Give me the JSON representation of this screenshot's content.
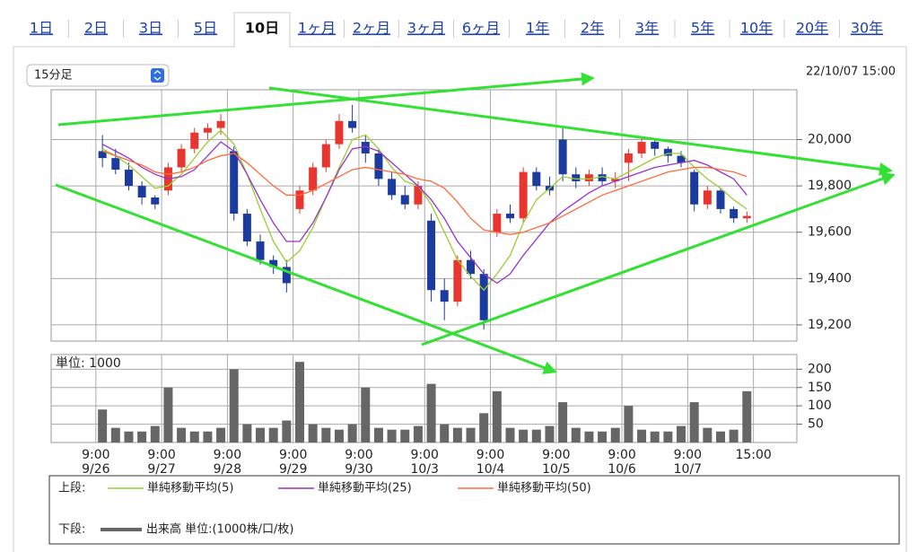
{
  "tabs": [
    "1日",
    "2日",
    "3日",
    "5日",
    "10日",
    "1ヶ月",
    "2ヶ月",
    "3ヶ月",
    "6ヶ月",
    "1年",
    "2年",
    "3年",
    "5年",
    "10年",
    "20年",
    "30年"
  ],
  "selected": 4,
  "interval_select": "15分足",
  "timestamp": "22/10/07 15:00",
  "chart_data": [
    {
      "type": "candlestick",
      "legend_label": "上段:",
      "ylim": [
        19130,
        20215
      ],
      "yticks": [
        {
          "value": 19200,
          "label": "19,200"
        },
        {
          "value": 19400,
          "label": "19,400"
        },
        {
          "value": 19600,
          "label": "19,600"
        },
        {
          "value": 19800,
          "label": "19,800"
        },
        {
          "value": 20000,
          "label": "20,000"
        }
      ],
      "xlim": [
        -3.4,
        53.3
      ],
      "xticks": [
        {
          "value": 0,
          "label": "9:00",
          "date": "9/26"
        },
        {
          "value": 5,
          "label": "9:00",
          "date": "9/27"
        },
        {
          "value": 10,
          "label": "9:00",
          "date": "9/28"
        },
        {
          "value": 15,
          "label": "9:00",
          "date": "9/29"
        },
        {
          "value": 20,
          "label": "9:00",
          "date": "9/30"
        },
        {
          "value": 25,
          "label": "9:00",
          "date": "10/3"
        },
        {
          "value": 30,
          "label": "9:00",
          "date": "10/4"
        },
        {
          "value": 35,
          "label": "9:00",
          "date": "10/5"
        },
        {
          "value": 40,
          "label": "9:00",
          "date": "10/6"
        },
        {
          "value": 45,
          "label": "9:00",
          "date": "10/7"
        },
        {
          "value": 50,
          "label": "15:00"
        }
      ],
      "up_color": "#e8352f",
      "down_color": "#1c3b9e",
      "open": [
        19950,
        19920,
        19870,
        19800,
        19750,
        19780,
        19880,
        19960,
        20030,
        20050,
        19950,
        19680,
        19560,
        19480,
        19450,
        19700,
        19780,
        19880,
        19980,
        20080,
        19990,
        19940,
        19830,
        19760,
        19720,
        19650,
        19350,
        19300,
        19480,
        19420,
        19600,
        19680,
        19660,
        19860,
        19800,
        20000,
        19850,
        19820,
        19850,
        19820,
        19900,
        19940,
        19990,
        19960,
        19930,
        19860,
        19720,
        19780,
        19700,
        19660
      ],
      "high": [
        20020,
        19960,
        19900,
        19820,
        19760,
        19900,
        19980,
        20050,
        20070,
        20110,
        19970,
        19700,
        19590,
        19500,
        19480,
        19800,
        19900,
        20000,
        20110,
        20150,
        20020,
        19960,
        19860,
        19800,
        19820,
        19680,
        19400,
        19500,
        19520,
        19440,
        19700,
        19720,
        19880,
        19880,
        19840,
        20050,
        19880,
        19870,
        19880,
        19860,
        19960,
        20010,
        20000,
        19970,
        19950,
        19870,
        19800,
        19790,
        19710,
        19690
      ],
      "low": [
        19880,
        19850,
        19780,
        19720,
        19700,
        19760,
        19860,
        19940,
        20000,
        20020,
        19650,
        19540,
        19460,
        19420,
        19340,
        19680,
        19760,
        19860,
        19960,
        20030,
        19900,
        19800,
        19740,
        19700,
        19700,
        19300,
        19220,
        19280,
        19400,
        19180,
        19580,
        19640,
        19640,
        19780,
        19760,
        19820,
        19790,
        19800,
        19800,
        19790,
        19820,
        19920,
        19930,
        19900,
        19880,
        19690,
        19700,
        19680,
        19640,
        19640
      ],
      "close": [
        19920,
        19870,
        19800,
        19750,
        19720,
        19880,
        19960,
        20030,
        20050,
        20080,
        19680,
        19560,
        19480,
        19450,
        19380,
        19780,
        19880,
        19980,
        20080,
        20050,
        19940,
        19830,
        19760,
        19720,
        19800,
        19350,
        19300,
        19480,
        19420,
        19220,
        19680,
        19660,
        19860,
        19800,
        19780,
        19850,
        19820,
        19850,
        19820,
        19830,
        19940,
        19990,
        19960,
        19930,
        19900,
        19720,
        19780,
        19700,
        19660,
        19670
      ],
      "series": [
        {
          "name": "単純移動平均(5)",
          "color": "#9acd32",
          "values": [
            19960,
            19930,
            19890,
            19840,
            19790,
            19800,
            19850,
            19920,
            19990,
            20040,
            19980,
            19850,
            19700,
            19560,
            19470,
            19520,
            19620,
            19750,
            19880,
            20000,
            20020,
            19960,
            19880,
            19820,
            19800,
            19720,
            19600,
            19480,
            19410,
            19350,
            19420,
            19500,
            19640,
            19740,
            19790,
            19840,
            19830,
            19830,
            19840,
            19830,
            19860,
            19890,
            19920,
            19940,
            19940,
            19880,
            19830,
            19790,
            19740,
            19700
          ]
        },
        {
          "name": "単純移動平均(25)",
          "color": "#9932cc",
          "values": [
            19980,
            19950,
            19920,
            19880,
            19850,
            19830,
            19840,
            19870,
            19930,
            19990,
            19950,
            19850,
            19740,
            19640,
            19560,
            19560,
            19640,
            19750,
            19870,
            19960,
            19970,
            19950,
            19900,
            19850,
            19800,
            19740,
            19660,
            19560,
            19490,
            19420,
            19380,
            19420,
            19500,
            19570,
            19640,
            19690,
            19730,
            19770,
            19800,
            19820,
            19840,
            19860,
            19880,
            19890,
            19900,
            19910,
            19890,
            19860,
            19830,
            19760
          ]
        },
        {
          "name": "単純移動平均(50)",
          "color": "#ff6a3d",
          "values": [
            19950,
            19930,
            19910,
            19890,
            19860,
            19850,
            19860,
            19880,
            19910,
            19930,
            19940,
            19900,
            19850,
            19800,
            19760,
            19760,
            19780,
            19810,
            19840,
            19870,
            19880,
            19870,
            19860,
            19850,
            19830,
            19820,
            19790,
            19730,
            19660,
            19610,
            19600,
            19590,
            19600,
            19620,
            19640,
            19670,
            19700,
            19730,
            19760,
            19780,
            19800,
            19820,
            19840,
            19860,
            19870,
            19880,
            19880,
            19870,
            19860,
            19840
          ]
        }
      ]
    },
    {
      "type": "bar",
      "legend_label": "下段:",
      "label": "単位: 1000",
      "ylim": [
        0,
        240
      ],
      "yticks": [
        50,
        100,
        150,
        200
      ],
      "series": [
        {
          "name": "出来高 単位:(1000株/口/枚)",
          "color": "#666666",
          "values": [
            90,
            40,
            30,
            30,
            45,
            150,
            40,
            30,
            30,
            40,
            200,
            50,
            40,
            40,
            60,
            220,
            50,
            40,
            35,
            50,
            150,
            40,
            35,
            35,
            45,
            160,
            50,
            40,
            40,
            80,
            140,
            40,
            35,
            35,
            45,
            110,
            40,
            30,
            30,
            40,
            100,
            35,
            30,
            30,
            45,
            110,
            40,
            30,
            35,
            140
          ]
        }
      ]
    }
  ]
}
